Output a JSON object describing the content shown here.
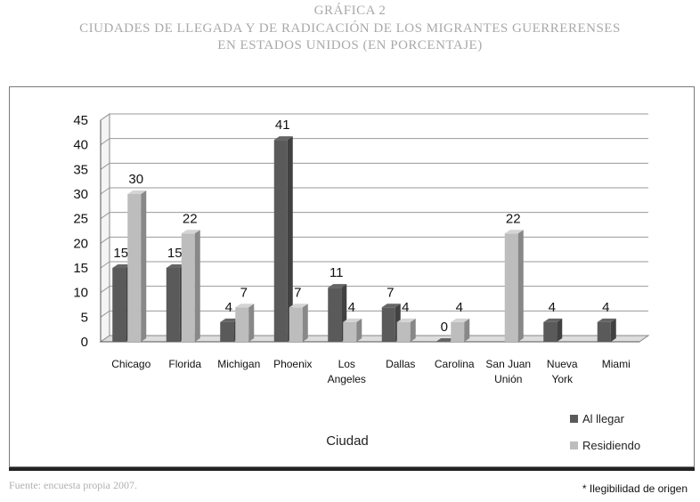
{
  "title": {
    "line1": "GRÁFICA 2",
    "line2": "CIUDADES DE LLEGADA Y DE RADICACIÓN DE LOS MIGRANTES GUERRERENSES",
    "line3": "EN ESTADOS UNIDOS (EN PORCENTAJE)"
  },
  "source": "Fuente: encuesta propia 2007.",
  "footnote": "* Ilegibilidad de origen",
  "chart_data": {
    "type": "bar",
    "categories": [
      "Chicago",
      "Florida",
      "Michigan",
      "Phoenix",
      "Los Angeles",
      "Dallas",
      "Carolina",
      "San Juan Unión",
      "Nueva York",
      "Miami"
    ],
    "category_lines": [
      [
        "Chicago"
      ],
      [
        "Florida"
      ],
      [
        "Michigan"
      ],
      [
        "Phoenix"
      ],
      [
        "Los",
        "Angeles"
      ],
      [
        "Dallas"
      ],
      [
        "Carolina"
      ],
      [
        "San Juan",
        "Unión"
      ],
      [
        "Nueva",
        "York"
      ],
      [
        "Miami"
      ]
    ],
    "series": [
      {
        "name": "Al llegar",
        "values": [
          15,
          15,
          4,
          41,
          11,
          7,
          0,
          null,
          4,
          4
        ],
        "labels": [
          "15",
          "15",
          "4",
          "41",
          "11",
          "7",
          "0",
          "",
          "4",
          "4"
        ],
        "color": "#5a5a5a"
      },
      {
        "name": "Residiendo",
        "values": [
          30,
          22,
          7,
          7,
          4,
          4,
          4,
          22,
          null,
          null
        ],
        "labels": [
          "30",
          "22",
          "7",
          "7",
          "4",
          "4",
          "4",
          "22",
          "",
          ""
        ],
        "color": "#bdbdbd"
      }
    ],
    "xlabel": "Ciudad",
    "ylabel": "",
    "ylim": [
      0,
      45
    ],
    "yticks": [
      0,
      5,
      10,
      15,
      20,
      25,
      30,
      35,
      40,
      45
    ],
    "grid": true,
    "legend": "bottom-right"
  }
}
